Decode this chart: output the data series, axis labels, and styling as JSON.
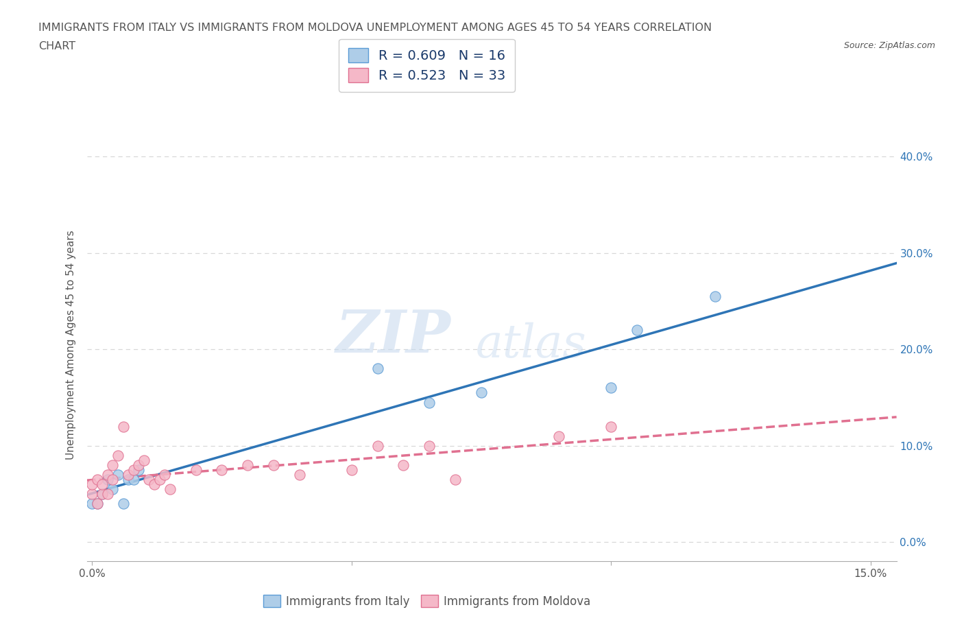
{
  "title_line1": "IMMIGRANTS FROM ITALY VS IMMIGRANTS FROM MOLDOVA UNEMPLOYMENT AMONG AGES 45 TO 54 YEARS CORRELATION",
  "title_line2": "CHART",
  "source": "Source: ZipAtlas.com",
  "ylabel": "Unemployment Among Ages 45 to 54 years",
  "italy_color": "#aecde8",
  "italy_edge_color": "#5b9bd5",
  "italy_line_color": "#2e75b6",
  "moldova_color": "#f5b8c8",
  "moldova_edge_color": "#e07090",
  "moldova_line_color": "#e07090",
  "italy_R": 0.609,
  "italy_N": 16,
  "moldova_R": 0.523,
  "moldova_N": 33,
  "xlim": [
    -0.001,
    0.155
  ],
  "ylim": [
    -0.02,
    0.43
  ],
  "xticks": [
    0.0,
    0.05,
    0.1,
    0.15
  ],
  "yticks": [
    0.0,
    0.1,
    0.2,
    0.3,
    0.4
  ],
  "watermark_top": "ZIP",
  "watermark_bot": "atlas",
  "italy_x": [
    0.0,
    0.001,
    0.002,
    0.003,
    0.004,
    0.005,
    0.006,
    0.007,
    0.008,
    0.009,
    0.055,
    0.065,
    0.075,
    0.1,
    0.105,
    0.12
  ],
  "italy_y": [
    0.04,
    0.04,
    0.05,
    0.065,
    0.055,
    0.07,
    0.04,
    0.065,
    0.065,
    0.075,
    0.18,
    0.145,
    0.155,
    0.16,
    0.22,
    0.255
  ],
  "moldova_x": [
    0.0,
    0.0,
    0.001,
    0.001,
    0.002,
    0.002,
    0.003,
    0.003,
    0.004,
    0.004,
    0.005,
    0.006,
    0.007,
    0.008,
    0.009,
    0.01,
    0.011,
    0.012,
    0.013,
    0.014,
    0.015,
    0.02,
    0.025,
    0.03,
    0.035,
    0.04,
    0.05,
    0.055,
    0.06,
    0.065,
    0.07,
    0.09,
    0.1
  ],
  "moldova_y": [
    0.05,
    0.06,
    0.04,
    0.065,
    0.05,
    0.06,
    0.05,
    0.07,
    0.065,
    0.08,
    0.09,
    0.12,
    0.07,
    0.075,
    0.08,
    0.085,
    0.065,
    0.06,
    0.065,
    0.07,
    0.055,
    0.075,
    0.075,
    0.08,
    0.08,
    0.07,
    0.075,
    0.1,
    0.08,
    0.1,
    0.065,
    0.11,
    0.12
  ],
  "background_color": "#ffffff",
  "grid_color": "#d8d8d8",
  "text_color": "#555555",
  "right_tick_color": "#2e75b6",
  "legend_text_color": "#1a3a6b"
}
